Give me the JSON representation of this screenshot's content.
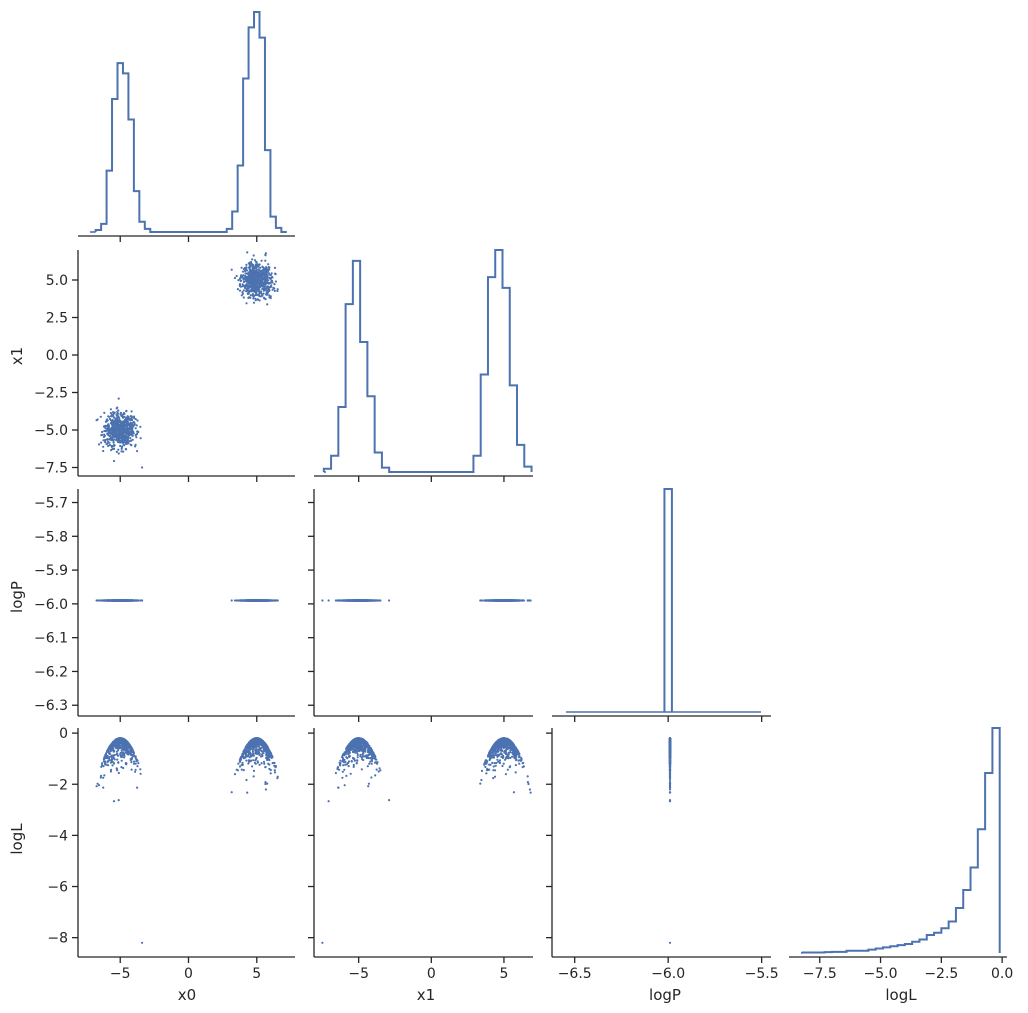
{
  "colors": {
    "series": "#4c72b0",
    "axis": "#262626",
    "background": "#ffffff"
  },
  "chart_data": {
    "type": "corner",
    "parameters": [
      "x0",
      "x1",
      "logP",
      "logL"
    ],
    "axis_ranges": {
      "x0": [
        -7.8,
        7.8
      ],
      "x1": [
        -7.8,
        7.0
      ],
      "logP": [
        -6.6,
        -5.45
      ],
      "logL": [
        -8.6,
        0.2
      ],
      "logP_scatter_y": [
        -6.32,
        -5.66
      ]
    },
    "ticks": {
      "x0": {
        "values": [
          -5,
          0,
          5
        ],
        "labels": [
          "−5",
          "0",
          "5"
        ]
      },
      "x1_x": {
        "values": [
          -5,
          0,
          5
        ],
        "labels": [
          "−5",
          "0",
          "5"
        ]
      },
      "x1_y": {
        "values": [
          5,
          2.5,
          0,
          -2.5,
          -5,
          -7.5
        ],
        "labels": [
          "5.0",
          "2.5",
          "0.0",
          "−2.5",
          "−5.0",
          "−7.5"
        ]
      },
      "logP_x": {
        "values": [
          -6.5,
          -6,
          -5.5
        ],
        "labels": [
          "−6.5",
          "−6.0",
          "−5.5"
        ]
      },
      "logP_y": {
        "values": [
          -5.7,
          -5.8,
          -5.9,
          -6.0,
          -6.1,
          -6.2,
          -6.3
        ],
        "labels": [
          "−5.7",
          "−5.8",
          "−5.9",
          "−6.0",
          "−6.1",
          "−6.2",
          "−6.3"
        ]
      },
      "logL_x": {
        "values": [
          -7.5,
          -5,
          -2.5,
          0
        ],
        "labels": [
          "−7.5",
          "−5.0",
          "−2.5",
          "0.0"
        ]
      },
      "logL_y": {
        "values": [
          0,
          -2,
          -4,
          -6,
          -8
        ],
        "labels": [
          "0",
          "−2",
          "−4",
          "−6",
          "−8"
        ]
      }
    },
    "axis_labels": {
      "x": [
        "x0",
        "x1",
        "logP",
        "logL"
      ],
      "y": [
        "",
        "x1",
        "logP",
        "logL"
      ]
    },
    "histograms": {
      "x0": {
        "bin_edges": [
          -6.8,
          -6.4,
          -6.0,
          -5.6,
          -5.2,
          -4.8,
          -4.4,
          -4.0,
          -3.6,
          -3.2,
          -2.8,
          2.8,
          3.2,
          3.6,
          4.0,
          4.4,
          4.8,
          5.2,
          5.6,
          6.0,
          6.4,
          6.8,
          7.2
        ],
        "counts": [
          2,
          8,
          60,
          130,
          165,
          155,
          110,
          40,
          10,
          3,
          0,
          3,
          20,
          65,
          150,
          200,
          215,
          190,
          80,
          15,
          4,
          0
        ]
      },
      "x1": {
        "bin_edges": [
          -7.4,
          -6.9,
          -6.4,
          -5.9,
          -5.4,
          -4.9,
          -4.4,
          -3.9,
          -3.4,
          -2.9,
          2.9,
          3.4,
          3.9,
          4.4,
          4.9,
          5.4,
          5.9,
          6.4,
          6.9
        ],
        "counts": [
          3,
          15,
          60,
          155,
          195,
          120,
          70,
          18,
          4,
          0,
          15,
          90,
          180,
          205,
          170,
          80,
          25,
          5
        ]
      },
      "logP": {
        "bin_edges": [
          -6.02,
          -5.98
        ],
        "counts": [
          100
        ]
      },
      "logL": {
        "bin_edges": [
          -8.2,
          -7.9,
          -7.6,
          -7.3,
          -7.0,
          -6.7,
          -6.4,
          -6.1,
          -5.8,
          -5.5,
          -5.2,
          -4.9,
          -4.6,
          -4.3,
          -4.0,
          -3.7,
          -3.4,
          -3.1,
          -2.8,
          -2.5,
          -2.2,
          -1.9,
          -1.6,
          -1.3,
          -1.0,
          -0.7,
          -0.4,
          -0.1
        ],
        "counts": [
          0.2,
          0.2,
          0.2,
          0.4,
          0.5,
          0.5,
          1.0,
          1.0,
          1.0,
          1.5,
          2.0,
          2.5,
          3.0,
          3.5,
          4.0,
          5.0,
          6.0,
          8.0,
          9.0,
          11.0,
          14.0,
          20.0,
          28.0,
          38.0,
          55.0,
          80.0,
          100.0
        ]
      }
    },
    "scatter_clusters": {
      "x0_centers": [
        -5,
        5
      ],
      "x1_centers": [
        -5,
        5
      ],
      "spread": 0.55,
      "logP_value": -5.99,
      "logL_max": -0.2,
      "logL_outlier": {
        "x0": -3.4,
        "x1": -7.5,
        "logL": -8.2
      }
    }
  }
}
